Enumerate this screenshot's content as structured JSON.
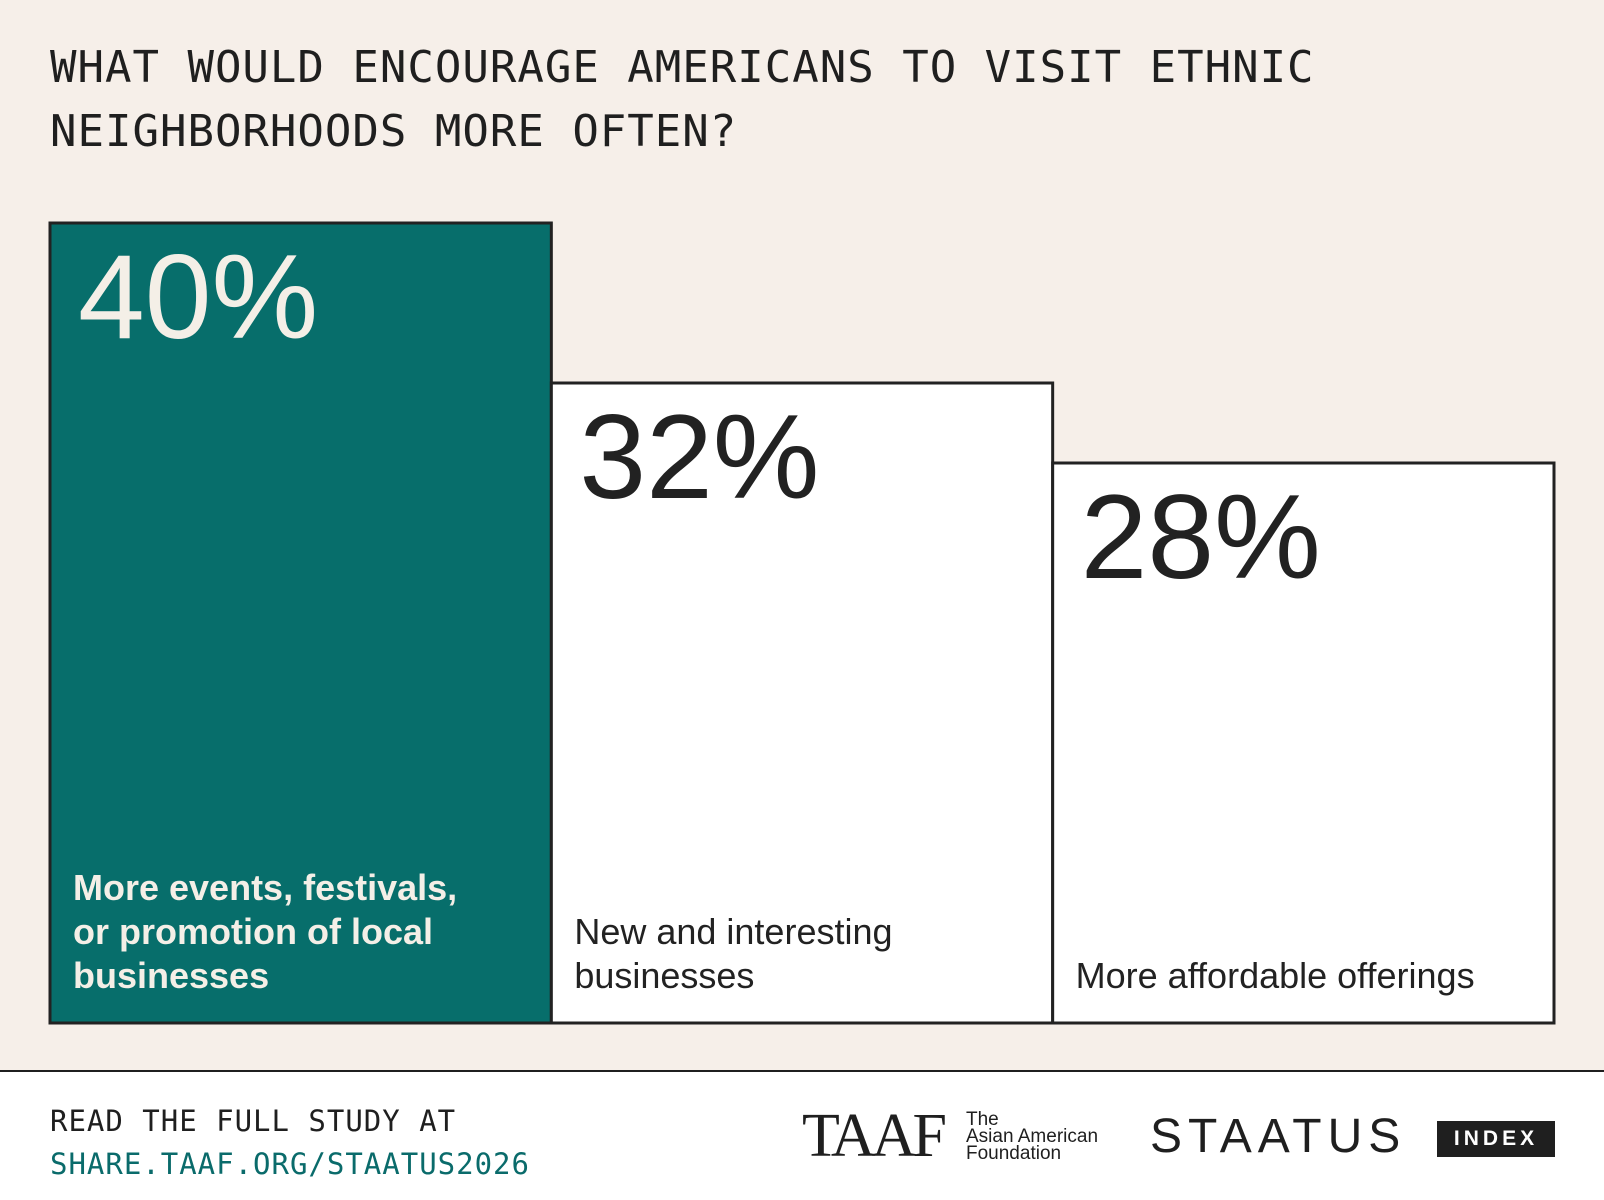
{
  "header": {
    "title_lines": [
      "WHAT WOULD ENCOURAGE AMERICANS TO VISIT ETHNIC",
      "NEIGHBORHOODS MORE OFTEN?"
    ]
  },
  "chart_data": {
    "type": "bar",
    "title": "WHAT WOULD ENCOURAGE AMERICANS TO VISIT ETHNIC NEIGHBORHOODS MORE OFTEN?",
    "categories": [
      "More events, festivals, or promotion of local businesses",
      "New and interesting businesses",
      "More affordable offerings"
    ],
    "category_lines": [
      [
        "More events, festivals,",
        "or promotion of local",
        "businesses"
      ],
      [
        "New and interesting",
        "businesses"
      ],
      [
        "More affordable offerings"
      ]
    ],
    "values": [
      40,
      32,
      28
    ],
    "value_labels": [
      "40%",
      "32%",
      "28%"
    ],
    "unit": "%",
    "highlight_index": 0,
    "ylim": [
      0,
      40
    ],
    "grid": false,
    "legend": "none",
    "colors": {
      "highlight_fill": "#076e6b",
      "default_fill": "#ffffff",
      "outline": "#222222",
      "highlight_text": "#f4efe7",
      "default_text": "#222222"
    }
  },
  "footer": {
    "cta_line1": "READ THE FULL STUDY AT",
    "cta_link": "SHARE.TAAF.ORG/STAATUS2026",
    "taaf_mark": "TAAF",
    "taaf_name_lines": [
      "The",
      "Asian American",
      "Foundation"
    ],
    "staatus_word": "STAATUS",
    "index_label": "INDEX"
  }
}
